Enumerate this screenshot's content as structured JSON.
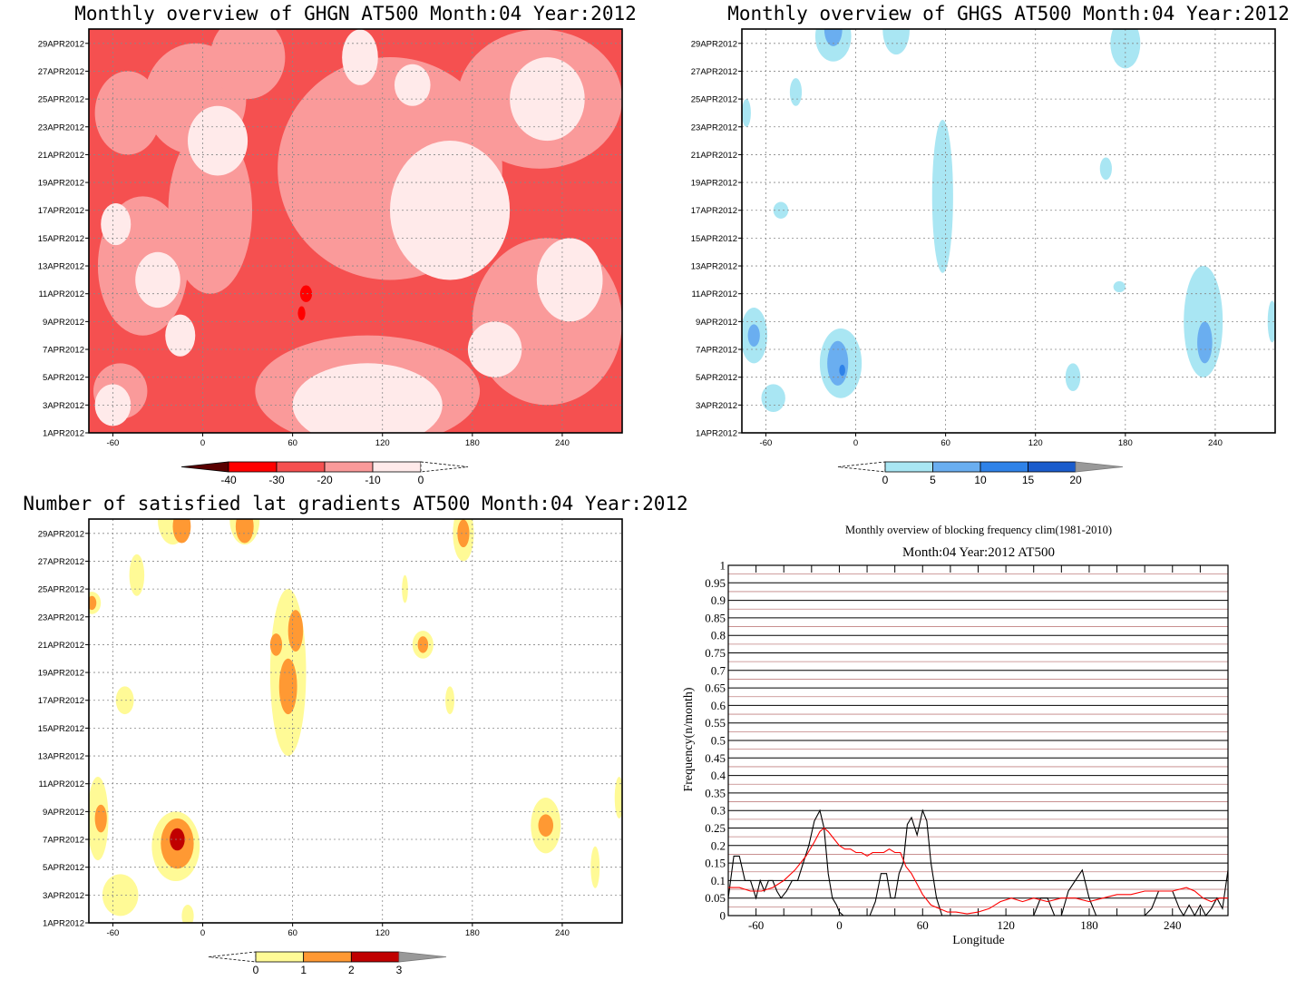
{
  "chart_data": [
    {
      "type": "heatmap",
      "title": "Monthly overview of GHGN AT500 Month:04 Year:2012",
      "x_ticks": [
        -60,
        0,
        60,
        120,
        180,
        240
      ],
      "xlim": [
        -76,
        280
      ],
      "y_ticks": [
        "1APR2012",
        "3APR2012",
        "5APR2012",
        "7APR2012",
        "9APR2012",
        "11APR2012",
        "13APR2012",
        "15APR2012",
        "17APR2012",
        "19APR2012",
        "21APR2012",
        "23APR2012",
        "25APR2012",
        "27APR2012",
        "29APR2012"
      ],
      "ylim": [
        1,
        30
      ],
      "colorbar": {
        "labels": [
          "-40",
          "-30",
          "-20",
          "-10",
          "0"
        ],
        "colors": [
          "#5a0000",
          "#ff0000",
          "#f55050",
          "#fa9a9a",
          "#ffeaea"
        ]
      },
      "background": "#f55050",
      "fields": [
        {
          "color": "#fa9a9a",
          "lon": -50,
          "day": 24,
          "rx": 22,
          "ry": 3
        },
        {
          "color": "#fa9a9a",
          "lon": -5,
          "day": 25,
          "rx": 34,
          "ry": 4
        },
        {
          "color": "#fa9a9a",
          "lon": 30,
          "day": 28,
          "rx": 25,
          "ry": 3
        },
        {
          "color": "#fa9a9a",
          "lon": -40,
          "day": 13,
          "rx": 30,
          "ry": 5
        },
        {
          "color": "#fa9a9a",
          "lon": 5,
          "day": 17,
          "rx": 28,
          "ry": 6
        },
        {
          "color": "#fa9a9a",
          "lon": 125,
          "day": 20,
          "rx": 75,
          "ry": 8
        },
        {
          "color": "#fa9a9a",
          "lon": 110,
          "day": 4,
          "rx": 75,
          "ry": 4
        },
        {
          "color": "#fa9a9a",
          "lon": 230,
          "day": 9,
          "rx": 50,
          "ry": 6
        },
        {
          "color": "#fa9a9a",
          "lon": 225,
          "day": 25,
          "rx": 55,
          "ry": 5
        },
        {
          "color": "#fa9a9a",
          "lon": -55,
          "day": 4,
          "rx": 18,
          "ry": 2
        },
        {
          "color": "#ffeaea",
          "lon": 10,
          "day": 22,
          "rx": 20,
          "ry": 2.5
        },
        {
          "color": "#ffeaea",
          "lon": -30,
          "day": 12,
          "rx": 15,
          "ry": 2
        },
        {
          "color": "#ffeaea",
          "lon": -58,
          "day": 16,
          "rx": 10,
          "ry": 1.5
        },
        {
          "color": "#ffeaea",
          "lon": 165,
          "day": 17,
          "rx": 40,
          "ry": 5
        },
        {
          "color": "#ffeaea",
          "lon": 110,
          "day": 3,
          "rx": 50,
          "ry": 3
        },
        {
          "color": "#ffeaea",
          "lon": 245,
          "day": 12,
          "rx": 22,
          "ry": 3
        },
        {
          "color": "#ffeaea",
          "lon": 230,
          "day": 25,
          "rx": 25,
          "ry": 3
        },
        {
          "color": "#ffeaea",
          "lon": 105,
          "day": 28,
          "rx": 12,
          "ry": 2
        },
        {
          "color": "#ffeaea",
          "lon": -60,
          "day": 3,
          "rx": 12,
          "ry": 1.5
        },
        {
          "color": "#ffeaea",
          "lon": 140,
          "day": 26,
          "rx": 12,
          "ry": 1.5
        },
        {
          "color": "#ffeaea",
          "lon": -15,
          "day": 8,
          "rx": 10,
          "ry": 1.5
        },
        {
          "color": "#ffeaea",
          "lon": 195,
          "day": 7,
          "rx": 18,
          "ry": 2
        },
        {
          "color": "#ff0000",
          "lon": 69,
          "day": 11,
          "rx": 4,
          "ry": 0.6
        },
        {
          "color": "#ff0000",
          "lon": 66,
          "day": 9.6,
          "rx": 2.5,
          "ry": 0.5
        }
      ]
    },
    {
      "type": "heatmap",
      "title": "Monthly overview of GHGS AT500 Month:04 Year:2012",
      "x_ticks": [
        -60,
        0,
        60,
        120,
        180,
        240
      ],
      "xlim": [
        -76,
        280
      ],
      "y_ticks": [
        "1APR2012",
        "3APR2012",
        "5APR2012",
        "7APR2012",
        "9APR2012",
        "11APR2012",
        "13APR2012",
        "15APR2012",
        "17APR2012",
        "19APR2012",
        "21APR2012",
        "23APR2012",
        "25APR2012",
        "27APR2012",
        "29APR2012"
      ],
      "ylim": [
        1,
        30
      ],
      "colorbar": {
        "labels": [
          "0",
          "5",
          "10",
          "15",
          "20"
        ],
        "colors": [
          "#ffffff",
          "#a9e6f3",
          "#6aaef0",
          "#2f82e8",
          "#1a5ccc",
          "#999999"
        ]
      },
      "background": "#ffffff",
      "fields": [
        {
          "color": "#a9e6f3",
          "lon": -10,
          "day": 6,
          "rx": 14,
          "ry": 2.5
        },
        {
          "color": "#6aaef0",
          "lon": -12,
          "day": 6,
          "rx": 7,
          "ry": 1.6
        },
        {
          "color": "#2f82e8",
          "lon": -9,
          "day": 5.5,
          "rx": 2,
          "ry": 0.4
        },
        {
          "color": "#a9e6f3",
          "lon": -68,
          "day": 8,
          "rx": 9,
          "ry": 2
        },
        {
          "color": "#6aaef0",
          "lon": -68,
          "day": 8,
          "rx": 4,
          "ry": 0.8
        },
        {
          "color": "#a9e6f3",
          "lon": -55,
          "day": 3.5,
          "rx": 8,
          "ry": 1
        },
        {
          "color": "#a9e6f3",
          "lon": 232,
          "day": 9,
          "rx": 13,
          "ry": 4
        },
        {
          "color": "#6aaef0",
          "lon": 233,
          "day": 7.5,
          "rx": 5,
          "ry": 1.5
        },
        {
          "color": "#a9e6f3",
          "lon": 58,
          "day": 18,
          "rx": 7,
          "ry": 5.5
        },
        {
          "color": "#a9e6f3",
          "lon": -15,
          "day": 29.5,
          "rx": 12,
          "ry": 1.8
        },
        {
          "color": "#6aaef0",
          "lon": -15,
          "day": 30,
          "rx": 6,
          "ry": 1.2
        },
        {
          "color": "#a9e6f3",
          "lon": 27,
          "day": 30,
          "rx": 9,
          "ry": 1.8
        },
        {
          "color": "#a9e6f3",
          "lon": 180,
          "day": 29,
          "rx": 10,
          "ry": 1.8
        },
        {
          "color": "#a9e6f3",
          "lon": -40,
          "day": 25.5,
          "rx": 4,
          "ry": 1
        },
        {
          "color": "#a9e6f3",
          "lon": -50,
          "day": 17,
          "rx": 5,
          "ry": 0.6
        },
        {
          "color": "#a9e6f3",
          "lon": 145,
          "day": 5,
          "rx": 5,
          "ry": 1
        },
        {
          "color": "#a9e6f3",
          "lon": 167,
          "day": 20,
          "rx": 4,
          "ry": 0.8
        },
        {
          "color": "#a9e6f3",
          "lon": 176,
          "day": 11.5,
          "rx": 4,
          "ry": 0.4
        },
        {
          "color": "#a9e6f3",
          "lon": 278,
          "day": 9,
          "rx": 3,
          "ry": 1.5
        },
        {
          "color": "#a9e6f3",
          "lon": -73,
          "day": 24,
          "rx": 3,
          "ry": 1
        }
      ]
    },
    {
      "type": "heatmap",
      "title": "Number of satisfied lat gradients AT500 Month:04 Year:2012",
      "x_ticks": [
        -60,
        0,
        60,
        120,
        180,
        240
      ],
      "xlim": [
        -76,
        280
      ],
      "y_ticks": [
        "1APR2012",
        "3APR2012",
        "5APR2012",
        "7APR2012",
        "9APR2012",
        "11APR2012",
        "13APR2012",
        "15APR2012",
        "17APR2012",
        "19APR2012",
        "21APR2012",
        "23APR2012",
        "25APR2012",
        "27APR2012",
        "29APR2012"
      ],
      "ylim": [
        1,
        30
      ],
      "colorbar": {
        "labels": [
          "0",
          "1",
          "2",
          "3"
        ],
        "colors": [
          "#ffffff",
          "#fffa96",
          "#ff9933",
          "#c00000",
          "#999999"
        ]
      },
      "background": "#ffffff",
      "fields": [
        {
          "color": "#fffa96",
          "lon": -18,
          "day": 6.5,
          "rx": 16,
          "ry": 2.5
        },
        {
          "color": "#ff9933",
          "lon": -17,
          "day": 6.7,
          "rx": 11,
          "ry": 1.8
        },
        {
          "color": "#c00000",
          "lon": -17,
          "day": 7,
          "rx": 5,
          "ry": 0.8
        },
        {
          "color": "#fffa96",
          "lon": -55,
          "day": 3,
          "rx": 12,
          "ry": 1.5
        },
        {
          "color": "#fffa96",
          "lon": -70,
          "day": 8.5,
          "rx": 7,
          "ry": 3
        },
        {
          "color": "#ff9933",
          "lon": -68,
          "day": 8.5,
          "rx": 4,
          "ry": 1
        },
        {
          "color": "#fffa96",
          "lon": -52,
          "day": 17,
          "rx": 6,
          "ry": 1
        },
        {
          "color": "#fffa96",
          "lon": 57,
          "day": 19,
          "rx": 12,
          "ry": 6
        },
        {
          "color": "#ff9933",
          "lon": 57,
          "day": 18,
          "rx": 6,
          "ry": 2
        },
        {
          "color": "#ff9933",
          "lon": 62,
          "day": 22,
          "rx": 5,
          "ry": 1.5
        },
        {
          "color": "#ff9933",
          "lon": 49,
          "day": 21,
          "rx": 4,
          "ry": 0.8
        },
        {
          "color": "#fffa96",
          "lon": -20,
          "day": 30,
          "rx": 10,
          "ry": 1.8
        },
        {
          "color": "#ff9933",
          "lon": -14,
          "day": 29.5,
          "rx": 6,
          "ry": 1.2
        },
        {
          "color": "#fffa96",
          "lon": 28,
          "day": 30,
          "rx": 10,
          "ry": 1.8
        },
        {
          "color": "#ff9933",
          "lon": 28,
          "day": 29.5,
          "rx": 6,
          "ry": 1.2
        },
        {
          "color": "#fffa96",
          "lon": -44,
          "day": 26,
          "rx": 5,
          "ry": 1.5
        },
        {
          "color": "#fffa96",
          "lon": 174,
          "day": 29,
          "rx": 7,
          "ry": 2
        },
        {
          "color": "#ff9933",
          "lon": 174,
          "day": 29,
          "rx": 4,
          "ry": 1
        },
        {
          "color": "#fffa96",
          "lon": 147,
          "day": 21,
          "rx": 7,
          "ry": 1
        },
        {
          "color": "#ff9933",
          "lon": 147,
          "day": 21,
          "rx": 3.5,
          "ry": 0.6
        },
        {
          "color": "#fffa96",
          "lon": 229,
          "day": 8,
          "rx": 10,
          "ry": 2
        },
        {
          "color": "#ff9933",
          "lon": 229,
          "day": 8,
          "rx": 5,
          "ry": 0.8
        },
        {
          "color": "#fffa96",
          "lon": -74,
          "day": 24,
          "rx": 6,
          "ry": 0.8
        },
        {
          "color": "#ff9933",
          "lon": -74,
          "day": 24,
          "rx": 3,
          "ry": 0.5
        },
        {
          "color": "#fffa96",
          "lon": 165,
          "day": 17,
          "rx": 3,
          "ry": 1
        },
        {
          "color": "#fffa96",
          "lon": 135,
          "day": 25,
          "rx": 2,
          "ry": 1
        },
        {
          "color": "#fffa96",
          "lon": -10,
          "day": 1.5,
          "rx": 4,
          "ry": 0.8
        },
        {
          "color": "#fffa96",
          "lon": 262,
          "day": 5,
          "rx": 3,
          "ry": 1.5
        },
        {
          "color": "#fffa96",
          "lon": 278,
          "day": 10,
          "rx": 3,
          "ry": 1.5
        }
      ]
    },
    {
      "type": "line",
      "title": "Monthly overview of blocking frequency clim(1981-2010)",
      "subtitle": "Month:04 Year:2012  AT500",
      "xlabel": "Longitude",
      "ylabel": "Frequency(n/month)",
      "xlim": [
        -80,
        280
      ],
      "ylim": [
        0,
        1
      ],
      "x_ticks": [
        -60,
        0,
        60,
        120,
        180,
        240
      ],
      "y_ticks": [
        "0",
        "0.05",
        "0.1",
        "0.15",
        "0.2",
        "0.25",
        "0.3",
        "0.35",
        "0.4",
        "0.45",
        "0.5",
        "0.55",
        "0.6",
        "0.65",
        "0.7",
        "0.75",
        "0.8",
        "0.85",
        "0.9",
        "0.95",
        "1"
      ],
      "series": [
        {
          "color": "#000000",
          "x": [
            -80,
            -76,
            -72,
            -68,
            -64,
            -60,
            -57,
            -54,
            -51,
            -48,
            -45,
            -42,
            -38,
            -34,
            -30,
            -26,
            -22,
            -18,
            -14,
            -11,
            -8,
            -5,
            -2,
            0,
            3,
            6,
            10,
            14,
            18,
            22,
            26,
            30,
            34,
            37,
            40,
            43,
            46,
            49,
            52,
            56,
            60,
            63,
            66,
            70,
            74,
            78,
            82,
            90,
            100,
            110,
            120,
            130,
            140,
            145,
            150,
            155,
            160,
            165,
            170,
            175,
            180,
            185,
            190,
            200,
            210,
            220,
            225,
            230,
            235,
            240,
            245,
            248,
            252,
            256,
            260,
            264,
            268,
            272,
            276,
            280
          ],
          "y": [
            0.05,
            0.17,
            0.17,
            0.1,
            0.1,
            0.05,
            0.1,
            0.07,
            0.1,
            0.1,
            0.07,
            0.05,
            0.07,
            0.1,
            0.1,
            0.15,
            0.2,
            0.27,
            0.3,
            0.25,
            0.12,
            0.05,
            0.03,
            0.01,
            0,
            0,
            0,
            0,
            0,
            0,
            0.04,
            0.12,
            0.12,
            0.05,
            0.05,
            0.12,
            0.15,
            0.26,
            0.28,
            0.23,
            0.3,
            0.27,
            0.15,
            0.05,
            0,
            0,
            0,
            0,
            0,
            0,
            0,
            0,
            0,
            0.05,
            0.05,
            0,
            0,
            0.07,
            0.1,
            0.13,
            0.05,
            0,
            0,
            0,
            0,
            0,
            0.02,
            0.07,
            0.07,
            0.07,
            0.02,
            0,
            0.03,
            0,
            0.03,
            0,
            0.02,
            0.05,
            0.02,
            0.13
          ]
        },
        {
          "color": "#ff0000",
          "x": [
            -80,
            -72,
            -64,
            -56,
            -48,
            -40,
            -32,
            -24,
            -18,
            -14,
            -11,
            -8,
            -4,
            0,
            4,
            8,
            12,
            16,
            20,
            24,
            28,
            32,
            36,
            40,
            44,
            48,
            52,
            56,
            60,
            66,
            72,
            78,
            84,
            92,
            100,
            108,
            116,
            124,
            132,
            140,
            150,
            160,
            170,
            180,
            190,
            200,
            210,
            220,
            230,
            240,
            250,
            256,
            262,
            268,
            274,
            280
          ],
          "y": [
            0.08,
            0.08,
            0.07,
            0.07,
            0.08,
            0.1,
            0.13,
            0.17,
            0.21,
            0.24,
            0.25,
            0.24,
            0.22,
            0.2,
            0.19,
            0.19,
            0.18,
            0.18,
            0.17,
            0.18,
            0.18,
            0.18,
            0.19,
            0.18,
            0.18,
            0.14,
            0.12,
            0.09,
            0.06,
            0.03,
            0.02,
            0.01,
            0.01,
            0.005,
            0.01,
            0.02,
            0.04,
            0.05,
            0.04,
            0.05,
            0.04,
            0.05,
            0.05,
            0.04,
            0.05,
            0.06,
            0.06,
            0.07,
            0.07,
            0.07,
            0.08,
            0.07,
            0.05,
            0.04,
            0.05,
            0.05
          ]
        }
      ]
    }
  ]
}
